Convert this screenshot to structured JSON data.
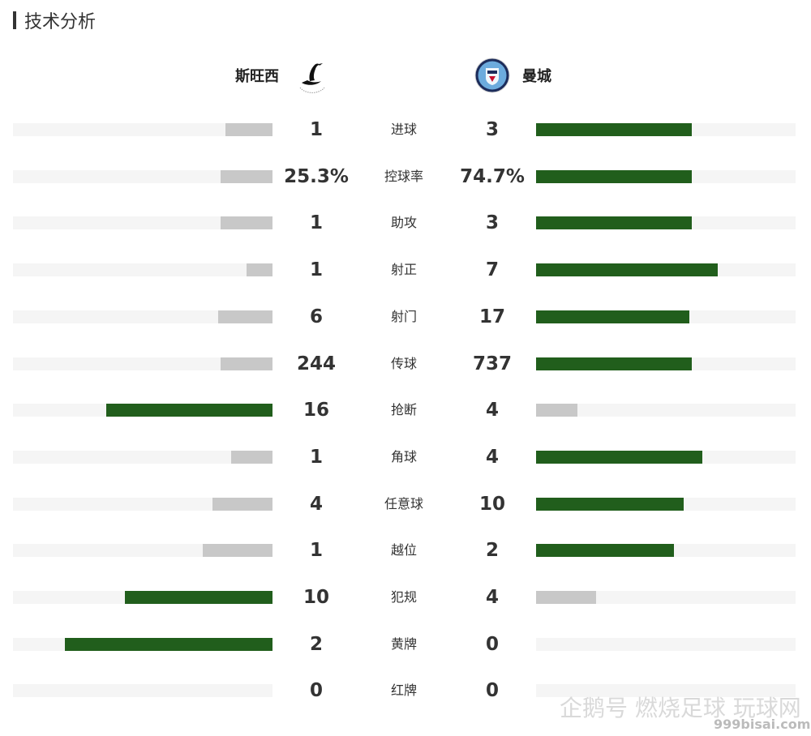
{
  "section": {
    "title": "技术分析"
  },
  "teams": {
    "home": {
      "name": "斯旺西",
      "logo_icon": "swansea-swan-crest-icon"
    },
    "away": {
      "name": "曼城",
      "logo_icon": "manchester-city-crest-icon"
    }
  },
  "colors": {
    "lead": "#215e1c",
    "trail": "#c8c8c8",
    "track": "#f5f5f5"
  },
  "stats": [
    {
      "label": "进球",
      "home": "1",
      "away": "3",
      "home_share": 0.18,
      "away_share": 0.6,
      "leader": "away"
    },
    {
      "label": "控球率",
      "home": "25.3%",
      "away": "74.7%",
      "home_share": 0.2,
      "away_share": 0.6,
      "leader": "away"
    },
    {
      "label": "助攻",
      "home": "1",
      "away": "3",
      "home_share": 0.2,
      "away_share": 0.6,
      "leader": "away"
    },
    {
      "label": "射正",
      "home": "1",
      "away": "7",
      "home_share": 0.1,
      "away_share": 0.7,
      "leader": "away"
    },
    {
      "label": "射门",
      "home": "6",
      "away": "17",
      "home_share": 0.21,
      "away_share": 0.59,
      "leader": "away"
    },
    {
      "label": "传球",
      "home": "244",
      "away": "737",
      "home_share": 0.2,
      "away_share": 0.6,
      "leader": "away"
    },
    {
      "label": "抢断",
      "home": "16",
      "away": "4",
      "home_share": 0.64,
      "away_share": 0.16,
      "leader": "home"
    },
    {
      "label": "角球",
      "home": "1",
      "away": "4",
      "home_share": 0.16,
      "away_share": 0.64,
      "leader": "away"
    },
    {
      "label": "任意球",
      "home": "4",
      "away": "10",
      "home_share": 0.23,
      "away_share": 0.57,
      "leader": "away"
    },
    {
      "label": "越位",
      "home": "1",
      "away": "2",
      "home_share": 0.27,
      "away_share": 0.53,
      "leader": "away"
    },
    {
      "label": "犯规",
      "home": "10",
      "away": "4",
      "home_share": 0.57,
      "away_share": 0.23,
      "leader": "home"
    },
    {
      "label": "黄牌",
      "home": "2",
      "away": "0",
      "home_share": 0.8,
      "away_share": 0,
      "leader": "home"
    },
    {
      "label": "红牌",
      "home": "0",
      "away": "0",
      "home_share": 0,
      "away_share": 0,
      "leader": "none"
    }
  ],
  "watermark": {
    "text": "企鹅号 燃烧足球 玩球网",
    "site": "999bisai.com"
  }
}
